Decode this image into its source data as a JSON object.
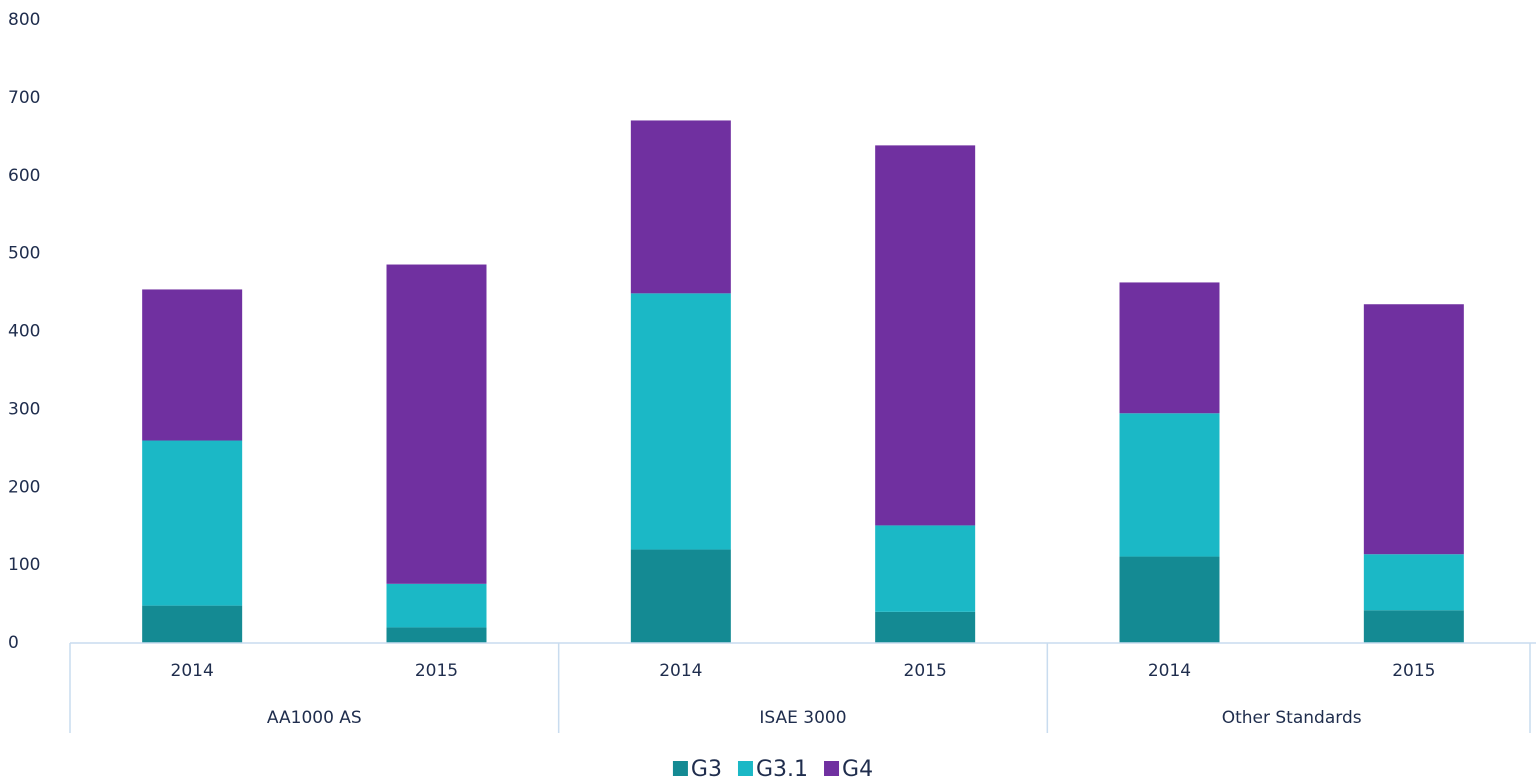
{
  "chart_data": {
    "type": "stacked-bar",
    "categories": [
      "2014",
      "2015",
      "2014",
      "2015",
      "2014",
      "2015"
    ],
    "groups": [
      "AA1000 AS",
      "ISAE 3000",
      "Other Standards"
    ],
    "series": [
      {
        "name": "G3",
        "color": "#148a93",
        "values": [
          48,
          20,
          120,
          40,
          111,
          42
        ]
      },
      {
        "name": "G3.1",
        "color": "#1bb8c6",
        "values": [
          212,
          56,
          329,
          111,
          184,
          72
        ]
      },
      {
        "name": "G4",
        "color": "#7030a0",
        "values": [
          194,
          410,
          222,
          488,
          168,
          321
        ]
      }
    ],
    "ylim": [
      0,
      800
    ],
    "yticks": [
      0,
      100,
      200,
      300,
      400,
      500,
      600,
      700,
      800
    ],
    "grid": false,
    "legend": "bottom"
  }
}
